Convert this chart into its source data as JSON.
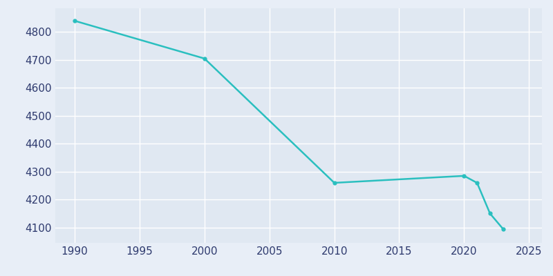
{
  "years": [
    1990,
    2000,
    2010,
    2020,
    2021,
    2022,
    2023
  ],
  "population": [
    4840,
    4705,
    4260,
    4285,
    4260,
    4150,
    4095
  ],
  "line_color": "#2ABFBF",
  "bg_color": "#E8EEF7",
  "axes_bg_color": "#E0E8F2",
  "text_color": "#2E3A6E",
  "ylim": [
    4045,
    4885
  ],
  "xlim": [
    1988.5,
    2026
  ],
  "yticks": [
    4100,
    4200,
    4300,
    4400,
    4500,
    4600,
    4700,
    4800
  ],
  "xticks": [
    1990,
    1995,
    2000,
    2005,
    2010,
    2015,
    2020,
    2025
  ],
  "line_width": 1.8,
  "marker": "o",
  "marker_size": 3.5
}
